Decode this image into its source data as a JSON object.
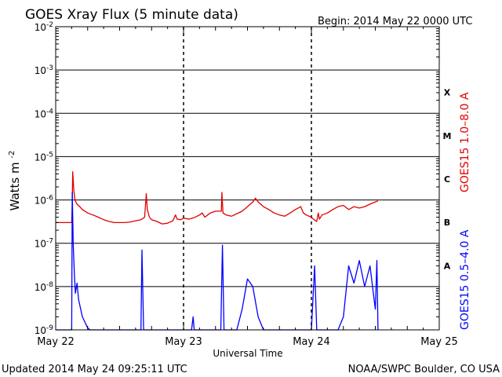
{
  "header": {
    "title": "GOES Xray Flux (5 minute data)",
    "begin": "Begin:  2014 May 22 0000 UTC"
  },
  "footer": {
    "updated": "Updated 2014 May 24 09:25:11 UTC",
    "credit": "NOAA/SWPC Boulder, CO USA"
  },
  "chart_data": {
    "type": "line",
    "title": "GOES Xray Flux (5 minute data)",
    "xlabel": "Universal Time",
    "ylabel": "Watts m",
    "ylabel_superscript": "-2",
    "y_scale": "log",
    "ylim": [
      1e-09,
      0.01
    ],
    "y_tick_exponents": [
      "-2",
      "-3",
      "-4",
      "-5",
      "-6",
      "-7",
      "-8",
      "-9"
    ],
    "y_tick_base": "10",
    "xlim": [
      0,
      72
    ],
    "x_unit": "hours since 2014 May 22 0000 UTC",
    "x_ticks": [
      {
        "x": 0,
        "label": "May 22"
      },
      {
        "x": 24,
        "label": "May 23"
      },
      {
        "x": 48,
        "label": "May 24"
      },
      {
        "x": 72,
        "label": "May 25"
      }
    ],
    "grid": "horizontal at each decade, dashed vertical at day boundaries",
    "flare_classes": [
      {
        "label": "X",
        "from": 0.0001,
        "to": 0.001
      },
      {
        "label": "M",
        "from": 1e-05,
        "to": 0.0001
      },
      {
        "label": "C",
        "from": 1e-06,
        "to": 1e-05
      },
      {
        "label": "B",
        "from": 1e-07,
        "to": 1e-06
      },
      {
        "label": "A",
        "from": 1e-08,
        "to": 1e-07
      }
    ],
    "series": [
      {
        "name": "GOES15 1.0–8.0 A",
        "color": "#e00000",
        "points": [
          [
            0,
            3e-07
          ],
          [
            2.0,
            3e-07
          ],
          [
            3.0,
            3e-07
          ],
          [
            3.1,
            8e-07
          ],
          [
            3.2,
            4.5e-06
          ],
          [
            3.4,
            1.7e-06
          ],
          [
            3.6,
            1e-06
          ],
          [
            4.0,
            8e-07
          ],
          [
            4.5,
            7e-07
          ],
          [
            5,
            6e-07
          ],
          [
            6,
            5e-07
          ],
          [
            7,
            4.5e-07
          ],
          [
            8,
            4e-07
          ],
          [
            9,
            3.5e-07
          ],
          [
            10,
            3.2e-07
          ],
          [
            11,
            3e-07
          ],
          [
            12,
            3e-07
          ],
          [
            13,
            3e-07
          ],
          [
            14,
            3.1e-07
          ],
          [
            15,
            3.3e-07
          ],
          [
            16,
            3.5e-07
          ],
          [
            16.7,
            4e-07
          ],
          [
            17.0,
            1.4e-06
          ],
          [
            17.2,
            6e-07
          ],
          [
            17.6,
            4e-07
          ],
          [
            18,
            3.5e-07
          ],
          [
            19,
            3.2e-07
          ],
          [
            20,
            2.8e-07
          ],
          [
            21,
            2.9e-07
          ],
          [
            22,
            3.3e-07
          ],
          [
            22.5,
            4.5e-07
          ],
          [
            22.8,
            3.6e-07
          ],
          [
            23.5,
            3.5e-07
          ],
          [
            24,
            3.8e-07
          ],
          [
            25,
            3.6e-07
          ],
          [
            26,
            3.9e-07
          ],
          [
            27,
            4.5e-07
          ],
          [
            27.5,
            5e-07
          ],
          [
            28,
            4e-07
          ],
          [
            29,
            5e-07
          ],
          [
            30.0,
            5.5e-07
          ],
          [
            31.1,
            5.5e-07
          ],
          [
            31.2,
            1.5e-06
          ],
          [
            31.4,
            5e-07
          ],
          [
            32,
            4.5e-07
          ],
          [
            33,
            4.2e-07
          ],
          [
            34,
            4.8e-07
          ],
          [
            35,
            5.5e-07
          ],
          [
            36,
            7e-07
          ],
          [
            37,
            9e-07
          ],
          [
            37.5,
            1.1e-06
          ],
          [
            38,
            9e-07
          ],
          [
            39,
            7e-07
          ],
          [
            40,
            6e-07
          ],
          [
            41,
            5e-07
          ],
          [
            42,
            4.5e-07
          ],
          [
            43,
            4.2e-07
          ],
          [
            44,
            5e-07
          ],
          [
            45,
            6e-07
          ],
          [
            46,
            7e-07
          ],
          [
            46.5,
            5e-07
          ],
          [
            47,
            4.5e-07
          ],
          [
            48,
            4e-07
          ],
          [
            48.5,
            3.5e-07
          ],
          [
            49,
            3.2e-07
          ],
          [
            49.3,
            5e-07
          ],
          [
            49.5,
            3.6e-07
          ],
          [
            50,
            4.5e-07
          ],
          [
            51,
            5e-07
          ],
          [
            52,
            6e-07
          ],
          [
            53,
            7e-07
          ],
          [
            54,
            7.5e-07
          ],
          [
            55,
            6e-07
          ],
          [
            56,
            7e-07
          ],
          [
            57,
            6.5e-07
          ],
          [
            58,
            7e-07
          ],
          [
            59,
            8e-07
          ],
          [
            60,
            9e-07
          ],
          [
            60.5,
            9.5e-07
          ]
        ]
      },
      {
        "name": "GOES15 0.5–4.0 A",
        "color": "#0000ff",
        "points": [
          [
            0,
            1e-09
          ],
          [
            3.0,
            1e-09
          ],
          [
            3.1,
            1.5e-06
          ],
          [
            3.3,
            9e-08
          ],
          [
            3.5,
            2e-08
          ],
          [
            3.7,
            7e-09
          ],
          [
            4.0,
            1.2e-08
          ],
          [
            4.3,
            5e-09
          ],
          [
            4.7,
            3e-09
          ],
          [
            5,
            2e-09
          ],
          [
            5.5,
            1.5e-09
          ],
          [
            6,
            1.1e-09
          ],
          [
            6.5,
            1e-09
          ],
          [
            16.0,
            1e-09
          ],
          [
            16.2,
            7e-08
          ],
          [
            16.5,
            1e-09
          ],
          [
            24,
            1e-09
          ],
          [
            25.5,
            1e-09
          ],
          [
            25.8,
            2e-09
          ],
          [
            26,
            1e-09
          ],
          [
            31,
            1e-09
          ],
          [
            31.3,
            9e-08
          ],
          [
            31.6,
            1e-09
          ],
          [
            34,
            1e-09
          ],
          [
            35,
            3e-09
          ],
          [
            36,
            1.5e-08
          ],
          [
            37,
            1e-08
          ],
          [
            38,
            2e-09
          ],
          [
            39,
            1e-09
          ],
          [
            48,
            1e-09
          ],
          [
            48.6,
            3e-08
          ],
          [
            49,
            1e-09
          ],
          [
            53,
            1e-09
          ],
          [
            54,
            2e-09
          ],
          [
            55,
            3e-08
          ],
          [
            56,
            1.2e-08
          ],
          [
            57,
            4e-08
          ],
          [
            58,
            1e-08
          ],
          [
            59,
            3e-08
          ],
          [
            60,
            3e-09
          ],
          [
            60.3,
            4e-08
          ],
          [
            60.5,
            1e-09
          ]
        ]
      }
    ]
  }
}
